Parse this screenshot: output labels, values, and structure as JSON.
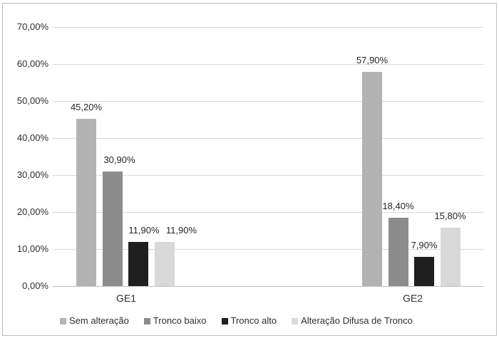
{
  "chart_data": {
    "type": "bar",
    "title": "",
    "categories": [
      "GE1",
      "GE2"
    ],
    "series": [
      {
        "name": "Sem alteração",
        "color": "#b3b3b3",
        "values": [
          45.2,
          57.9
        ],
        "labels": [
          "45,20%",
          "57,90%"
        ]
      },
      {
        "name": "Tronco baixo",
        "color": "#8c8c8c",
        "values": [
          30.9,
          18.4
        ],
        "labels": [
          "30,90%",
          "18,40%"
        ]
      },
      {
        "name": "Tronco alto",
        "color": "#1f1f1f",
        "values": [
          11.9,
          7.9
        ],
        "labels": [
          "11,90%",
          "7,90%"
        ]
      },
      {
        "name": "Alteração Difusa de Tronco",
        "color": "#d9d9d9",
        "values": [
          11.9,
          15.8
        ],
        "labels": [
          "11,90%",
          "15,80%"
        ]
      }
    ],
    "y_axis": {
      "min": 0,
      "max": 70,
      "step": 10,
      "tick_labels": [
        "0,00%",
        "10,00%",
        "20,00%",
        "30,00%",
        "40,00%",
        "50,00%",
        "60,00%",
        "70,00%"
      ]
    },
    "grid": true,
    "legend_position": "bottom",
    "label_dx": [
      [
        0,
        10,
        8,
        24
      ],
      [
        0,
        0,
        0,
        0
      ]
    ],
    "colors": {
      "grid": "#d9d9d9",
      "axis": "#bfbfbf",
      "text": "#2e2e2e",
      "border": "#bcbcbc",
      "background": "#ffffff"
    }
  }
}
